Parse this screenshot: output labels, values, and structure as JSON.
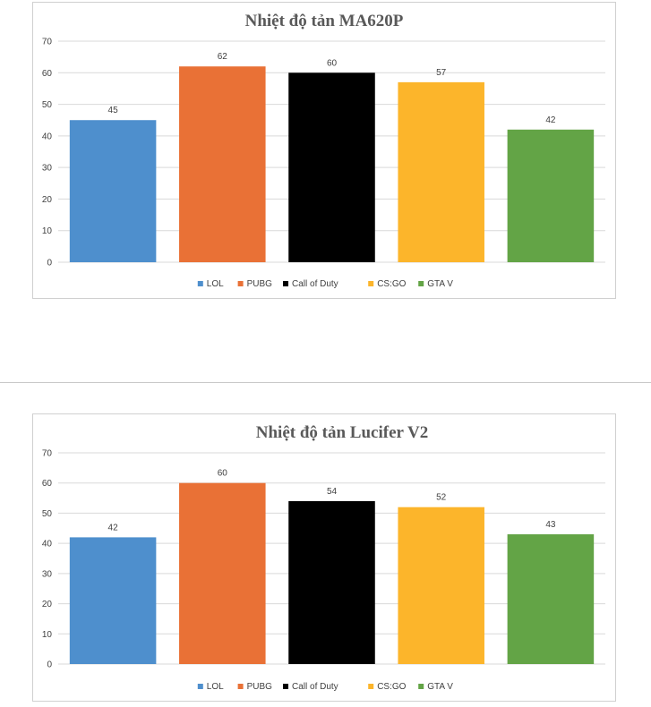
{
  "chart_data": [
    {
      "type": "bar",
      "title": "Nhiệt độ tản MA620P",
      "categories": [
        "LOL",
        "PUBG",
        "Call of Duty",
        "CS:GO",
        "GTA V"
      ],
      "values": [
        45,
        62,
        60,
        57,
        42
      ],
      "colors": [
        "#4e8fcd",
        "#e97136",
        "#000000",
        "#fcb52b",
        "#63a446"
      ],
      "yticks": [
        "0",
        "10",
        "20",
        "30",
        "40",
        "50",
        "60",
        "70"
      ],
      "ylim": [
        0,
        70
      ],
      "grid": true,
      "legend_position": "bottom"
    },
    {
      "type": "bar",
      "title": "Nhiệt độ tản Lucifer V2",
      "categories": [
        "LOL",
        "PUBG",
        "Call of Duty",
        "CS:GO",
        "GTA V"
      ],
      "values": [
        42,
        60,
        54,
        52,
        43
      ],
      "colors": [
        "#4e8fcd",
        "#e97136",
        "#000000",
        "#fcb52b",
        "#63a446"
      ],
      "yticks": [
        "0",
        "10",
        "20",
        "30",
        "40",
        "50",
        "60",
        "70"
      ],
      "ylim": [
        0,
        70
      ],
      "grid": true,
      "legend_position": "bottom"
    }
  ]
}
